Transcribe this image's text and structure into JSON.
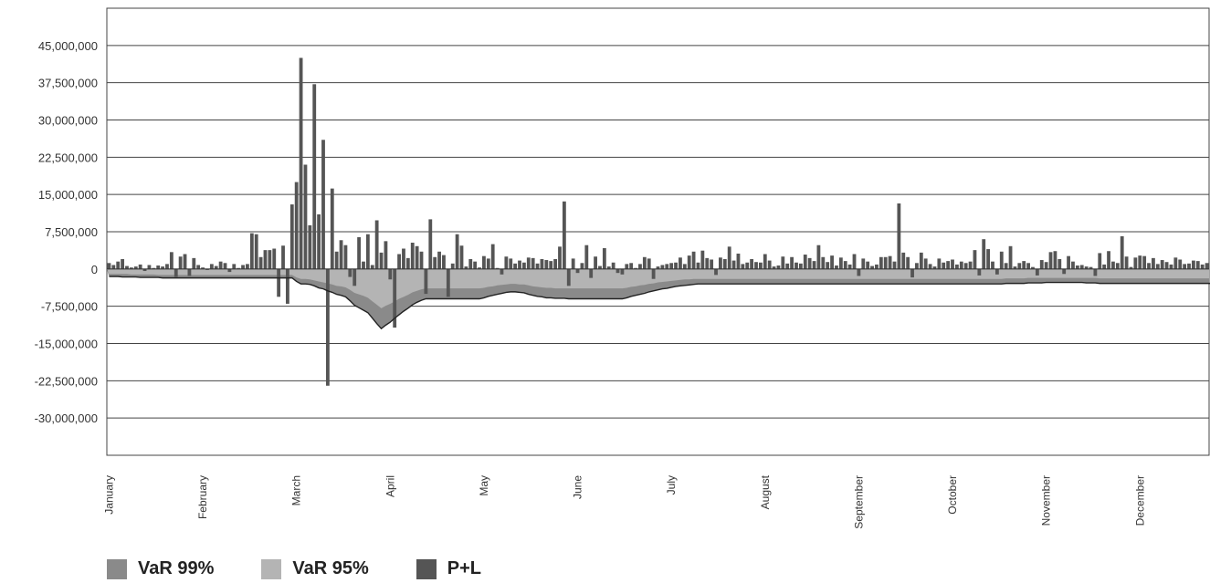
{
  "chart_data": {
    "type": "bar",
    "title": "",
    "xlabel": "",
    "ylabel": "",
    "ylim": [
      -37500000,
      52500000
    ],
    "yticks": [
      45000000,
      37500000,
      30000000,
      22500000,
      15000000,
      7500000,
      0,
      -7500000,
      -15000000,
      -22500000,
      -30000000
    ],
    "ytick_labels": [
      "45,000,000",
      "37,500,000",
      "30,000,000",
      "22,500,000",
      "15,000,000",
      "7,500,000",
      "0",
      "-7,500,000",
      "-15,000,000",
      "-22,500,000",
      "-30,000,000"
    ],
    "months": [
      "January",
      "February",
      "March",
      "April",
      "May",
      "June",
      "July",
      "August",
      "September",
      "October",
      "November",
      "December"
    ],
    "days_per_month": 21,
    "grid": true,
    "legend_position": "bottom-left",
    "colors": {
      "var99": "#8a8a8a",
      "var95": "#b4b4b4",
      "pnl": "#555555",
      "line": "#222222"
    },
    "series": [
      {
        "name": "VaR 99%",
        "values": [
          -1500000,
          -1500000,
          -1500000,
          -1600000,
          -1600000,
          -1600000,
          -1600000,
          -1700000,
          -1700000,
          -1700000,
          -1700000,
          -1700000,
          -1800000,
          -1800000,
          -1800000,
          -1800000,
          -1800000,
          -1800000,
          -1800000,
          -1800000,
          -1800000,
          -1800000,
          -1800000,
          -1800000,
          -1800000,
          -1800000,
          -1800000,
          -1800000,
          -1800000,
          -1800000,
          -1800000,
          -1800000,
          -1800000,
          -1800000,
          -1800000,
          -1800000,
          -1800000,
          -1800000,
          -1800000,
          -1800000,
          -1800000,
          -1800000,
          -2500000,
          -3000000,
          -3000000,
          -3100000,
          -3400000,
          -3800000,
          -4000000,
          -4400000,
          -4700000,
          -5100000,
          -5300000,
          -5600000,
          -6400000,
          -7300000,
          -7800000,
          -8300000,
          -8800000,
          -9900000,
          -11000000,
          -12000000,
          -11300000,
          -10700000,
          -9900000,
          -9200000,
          -8500000,
          -7900000,
          -7200000,
          -6700000,
          -6300000,
          -6000000,
          -6000000,
          -6000000,
          -6000000,
          -6000000,
          -6000000,
          -6000000,
          -6000000,
          -6000000,
          -6000000,
          -6000000,
          -6000000,
          -6000000,
          -5800000,
          -5500000,
          -5300000,
          -5100000,
          -4900000,
          -4700000,
          -4600000,
          -4600000,
          -4700000,
          -4800000,
          -5100000,
          -5300000,
          -5500000,
          -5600000,
          -5800000,
          -5800000,
          -5900000,
          -5900000,
          -5900000,
          -6000000,
          -6000000,
          -6000000,
          -6000000,
          -6000000,
          -6000000,
          -6000000,
          -6000000,
          -6000000,
          -6000000,
          -6000000,
          -6000000,
          -6000000,
          -5800000,
          -5500000,
          -5300000,
          -5100000,
          -4900000,
          -4600000,
          -4400000,
          -4200000,
          -4000000,
          -3900000,
          -3700000,
          -3500000,
          -3400000,
          -3300000,
          -3200000,
          -3100000,
          -3000000,
          -3000000,
          -3000000,
          -3000000,
          -3000000,
          -3000000,
          -3000000,
          -3000000,
          -3000000,
          -3000000,
          -3000000,
          -3000000,
          -3000000,
          -3000000,
          -3000000,
          -3000000,
          -3000000,
          -3000000,
          -3000000,
          -3000000,
          -3000000,
          -3000000,
          -3000000,
          -3000000,
          -3000000,
          -3000000,
          -3000000,
          -3000000,
          -3000000,
          -3000000,
          -3000000,
          -3000000,
          -3000000,
          -3000000,
          -3000000,
          -3000000,
          -3000000,
          -3000000,
          -3000000,
          -3000000,
          -3000000,
          -3000000,
          -3000000,
          -3000000,
          -3000000,
          -3000000,
          -3000000,
          -3000000,
          -3000000,
          -3000000,
          -3000000,
          -3000000,
          -3000000,
          -3000000,
          -3000000,
          -3000000,
          -3000000,
          -3000000,
          -3000000,
          -3000000,
          -3000000,
          -3000000,
          -3000000,
          -3000000,
          -3000000,
          -3000000,
          -3000000,
          -3000000,
          -3000000,
          -2900000,
          -2900000,
          -2900000,
          -2900000,
          -2900000,
          -2800000,
          -2800000,
          -2800000,
          -2800000,
          -2700000,
          -2700000,
          -2700000,
          -2700000,
          -2700000,
          -2700000,
          -2700000,
          -2700000,
          -2700000,
          -2800000,
          -2800000,
          -2800000,
          -2900000,
          -2900000,
          -2900000,
          -2900000,
          -2900000,
          -2900000,
          -2900000,
          -2900000,
          -2900000,
          -2900000,
          -2900000,
          -2900000,
          -2900000,
          -2900000,
          -2900000,
          -2900000,
          -2900000,
          -2900000,
          -2900000,
          -2900000,
          -2900000,
          -2900000,
          -2900000,
          -2900000,
          -2900000,
          -2900000,
          -2900000,
          -2900000,
          -2900000,
          -2900000,
          -2900000,
          -2900000,
          -2900000,
          -2900000,
          -2900000,
          -2900000,
          -2900000
        ],
        "approx_values_note_hidden": null
      },
      {
        "name": "VaR 95%",
        "values": [
          -1000000,
          -1000000,
          -1000000,
          -1000000,
          -1000000,
          -1100000,
          -1100000,
          -1100000,
          -1100000,
          -1100000,
          -1100000,
          -1200000,
          -1200000,
          -1200000,
          -1200000,
          -1200000,
          -1200000,
          -1200000,
          -1200000,
          -1200000,
          -1200000,
          -1200000,
          -1200000,
          -1200000,
          -1200000,
          -1200000,
          -1200000,
          -1200000,
          -1200000,
          -1200000,
          -1200000,
          -1200000,
          -1200000,
          -1200000,
          -1200000,
          -1200000,
          -1200000,
          -1200000,
          -1200000,
          -1200000,
          -1200000,
          -1200000,
          -1700000,
          -2000000,
          -2000000,
          -2100000,
          -2300000,
          -2500000,
          -2700000,
          -2900000,
          -3100000,
          -3400000,
          -3500000,
          -3700000,
          -4200000,
          -4800000,
          -5100000,
          -5400000,
          -5800000,
          -6500000,
          -7200000,
          -7900000,
          -7400000,
          -7000000,
          -6500000,
          -6000000,
          -5600000,
          -5200000,
          -4700000,
          -4400000,
          -4100000,
          -3900000,
          -3900000,
          -3900000,
          -3900000,
          -3900000,
          -3900000,
          -3900000,
          -3900000,
          -3900000,
          -3900000,
          -3900000,
          -3900000,
          -3900000,
          -3800000,
          -3600000,
          -3500000,
          -3300000,
          -3200000,
          -3100000,
          -3000000,
          -3000000,
          -3100000,
          -3100000,
          -3300000,
          -3500000,
          -3600000,
          -3700000,
          -3800000,
          -3800000,
          -3900000,
          -3900000,
          -3900000,
          -3900000,
          -3900000,
          -3900000,
          -3900000,
          -3900000,
          -3900000,
          -3900000,
          -3900000,
          -3900000,
          -3900000,
          -3900000,
          -3900000,
          -3900000,
          -3800000,
          -3600000,
          -3500000,
          -3300000,
          -3200000,
          -3000000,
          -2900000,
          -2700000,
          -2600000,
          -2500000,
          -2400000,
          -2300000,
          -2200000,
          -2100000,
          -2100000,
          -2000000,
          -2000000,
          -2000000,
          -2000000,
          -2000000,
          -2000000,
          -2000000,
          -2000000,
          -2000000,
          -2000000,
          -2000000,
          -2000000,
          -2000000,
          -2000000,
          -2000000,
          -2000000,
          -2000000,
          -2000000,
          -2000000,
          -2000000,
          -2000000,
          -2000000,
          -2000000,
          -2000000,
          -2000000,
          -2000000,
          -2000000,
          -2000000,
          -2000000,
          -2000000,
          -2000000,
          -2000000,
          -2000000,
          -2000000,
          -2000000,
          -2000000,
          -2000000,
          -2000000,
          -2000000,
          -2000000,
          -2000000,
          -2000000,
          -2000000,
          -2000000,
          -2000000,
          -2000000,
          -2000000,
          -2000000,
          -2000000,
          -2000000,
          -2000000,
          -2000000,
          -2000000,
          -2000000,
          -2000000,
          -2000000,
          -2000000,
          -2000000,
          -2000000,
          -2000000,
          -2000000,
          -2000000,
          -2000000,
          -2000000,
          -2000000,
          -2000000,
          -2000000,
          -2000000,
          -2000000,
          -2000000,
          -1900000,
          -1900000,
          -1900000,
          -1900000,
          -1900000,
          -1800000,
          -1800000,
          -1800000,
          -1800000,
          -1800000,
          -1800000,
          -1800000,
          -1800000,
          -1800000,
          -1800000,
          -1800000,
          -1800000,
          -1800000,
          -1800000,
          -1800000,
          -1800000,
          -1900000,
          -1900000,
          -1900000,
          -1900000,
          -1900000,
          -1900000,
          -1900000,
          -1900000,
          -1900000,
          -1900000,
          -1900000,
          -1900000,
          -1900000,
          -1900000,
          -1900000,
          -1900000,
          -1900000,
          -1900000,
          -1900000,
          -1900000,
          -1900000,
          -1900000,
          -1900000,
          -1900000,
          -1900000,
          -1900000,
          -1900000,
          -1900000,
          -1900000,
          -1900000,
          -1900000,
          -1900000,
          -1900000,
          -1900000,
          -1900000,
          -1900000,
          -1900000
        ]
      },
      {
        "name": "P+L",
        "values": [
          1200000,
          800000,
          1500000,
          2000000,
          600000,
          300000,
          500000,
          900000,
          -400000,
          800000,
          200000,
          700000,
          500000,
          1000000,
          3400000,
          -1600000,
          2500000,
          3000000,
          -1400000,
          2200000,
          800000,
          300000,
          -200000,
          1000000,
          600000,
          1500000,
          1200000,
          -600000,
          1000000,
          200000,
          800000,
          1000000,
          7200000,
          7000000,
          2400000,
          3800000,
          3800000,
          4100000,
          -5600000,
          4700000,
          -7000000,
          13000000,
          17500000,
          42500000,
          21000000,
          8800000,
          37200000,
          11000000,
          26000000,
          -23500000,
          16200000,
          3500000,
          5800000,
          4800000,
          -1600000,
          -3400000,
          6400000,
          1500000,
          7000000,
          800000,
          9800000,
          3300000,
          5600000,
          -2100000,
          -11800000,
          3000000,
          4100000,
          2200000,
          5300000,
          4600000,
          3500000,
          -5000000,
          10000000,
          2400000,
          3500000,
          2800000,
          -5600000,
          1100000,
          7000000,
          4700000,
          500000,
          2000000,
          1500000,
          300000,
          2600000,
          2100000,
          5000000,
          200000,
          -1100000,
          2500000,
          2100000,
          1100000,
          1700000,
          1300000,
          2300000,
          2200000,
          1100000,
          2000000,
          1800000,
          1600000,
          2000000,
          4500000,
          13600000,
          -3400000,
          2100000,
          -800000,
          1200000,
          4800000,
          -1800000,
          2500000,
          600000,
          4200000,
          500000,
          1300000,
          -800000,
          -1100000,
          1000000,
          1200000,
          200000,
          1000000,
          2400000,
          2100000,
          -2000000,
          500000,
          800000,
          1000000,
          1200000,
          1300000,
          2300000,
          1000000,
          2700000,
          3500000,
          1300000,
          3700000,
          2200000,
          1900000,
          -1200000,
          2300000,
          2000000,
          4500000,
          1700000,
          3100000,
          1000000,
          1300000,
          2000000,
          1400000,
          1300000,
          3000000,
          1700000,
          500000,
          700000,
          2500000,
          1100000,
          2400000,
          1300000,
          1100000,
          2900000,
          2200000,
          1600000,
          4800000,
          2400000,
          1400000,
          2700000,
          700000,
          2300000,
          1600000,
          900000,
          3000000,
          -1400000,
          2100000,
          1500000,
          600000,
          900000,
          2400000,
          2400000,
          2600000,
          1500000,
          13200000,
          3300000,
          2400000,
          -1700000,
          1200000,
          3300000,
          2100000,
          1000000,
          500000,
          2100000,
          1300000,
          1600000,
          1900000,
          900000,
          1500000,
          1200000,
          1500000,
          3800000,
          -1300000,
          6000000,
          4000000,
          1500000,
          -1100000,
          3500000,
          1200000,
          4600000,
          500000,
          1200000,
          1600000,
          1200000,
          400000,
          -1300000,
          1800000,
          1400000,
          3400000,
          3600000,
          2000000,
          -1000000,
          2600000,
          1500000,
          700000,
          800000,
          500000,
          400000,
          -1400000,
          3200000,
          900000,
          3600000,
          1500000,
          1200000,
          6600000,
          2500000,
          400000,
          2300000,
          2700000,
          2600000,
          1200000,
          2200000,
          1000000,
          1800000,
          1400000,
          900000,
          2300000,
          1900000,
          1000000,
          1100000,
          1700000,
          1600000,
          900000,
          1200000
        ]
      }
    ],
    "legend": [
      "VaR 99%",
      "VaR 95%",
      "P+L"
    ]
  }
}
